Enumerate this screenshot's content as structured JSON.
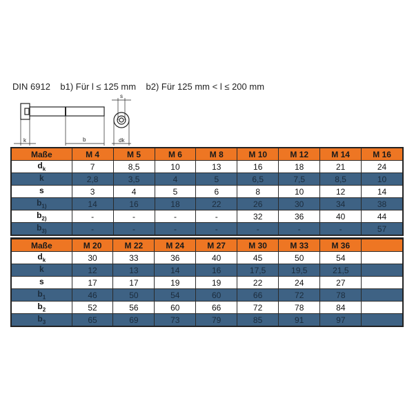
{
  "title": "DIN 6912    b1) Für l ≤ 125 mm    b2) Für 125 mm < l ≤ 200 mm",
  "diagram": {
    "k": "k",
    "b": "b",
    "s": "s",
    "dk": "dk"
  },
  "colors": {
    "header": "#ee7623",
    "band": "#3e6284"
  },
  "table1": {
    "headers": [
      "Maße",
      "M 4",
      "M 5",
      "M 6",
      "M 8",
      "M 10",
      "M 12",
      "M 14",
      "M 16"
    ],
    "rows": [
      {
        "label": "d",
        "sub": "k",
        "values": [
          "7",
          "8,5",
          "10",
          "13",
          "16",
          "18",
          "21",
          "24"
        ]
      },
      {
        "label": "k",
        "sub": "",
        "values": [
          "2,8",
          "3,5",
          "4",
          "5",
          "6,5",
          "7,5",
          "8,5",
          "10"
        ]
      },
      {
        "label": "s",
        "sub": "",
        "values": [
          "3",
          "4",
          "5",
          "6",
          "8",
          "10",
          "12",
          "14"
        ]
      },
      {
        "label": "b",
        "sub": "1)",
        "values": [
          "14",
          "16",
          "18",
          "22",
          "26",
          "30",
          "34",
          "38"
        ]
      },
      {
        "label": "b",
        "sub": "2)",
        "values": [
          "-",
          "-",
          "-",
          "-",
          "32",
          "36",
          "40",
          "44"
        ]
      },
      {
        "label": "b",
        "sub": "3)",
        "values": [
          "-",
          "-",
          "-",
          "-",
          "-",
          "-",
          "-",
          "57"
        ]
      }
    ]
  },
  "table2": {
    "headers": [
      "Maße",
      "M 20",
      "M 22",
      "M 24",
      "M 27",
      "M 30",
      "M 33",
      "M 36",
      ""
    ],
    "rows": [
      {
        "label": "d",
        "sub": "k",
        "values": [
          "30",
          "33",
          "36",
          "40",
          "45",
          "50",
          "54",
          ""
        ]
      },
      {
        "label": "k",
        "sub": "",
        "values": [
          "12",
          "13",
          "14",
          "16",
          "17,5",
          "19,5",
          "21,5",
          ""
        ]
      },
      {
        "label": "s",
        "sub": "",
        "values": [
          "17",
          "17",
          "19",
          "19",
          "22",
          "24",
          "27",
          ""
        ]
      },
      {
        "label": "b",
        "sub": "1",
        "values": [
          "46",
          "50",
          "54",
          "60",
          "66",
          "72",
          "78",
          ""
        ]
      },
      {
        "label": "b",
        "sub": "2",
        "values": [
          "52",
          "56",
          "60",
          "66",
          "72",
          "78",
          "84",
          ""
        ]
      },
      {
        "label": "b",
        "sub": "3",
        "values": [
          "65",
          "69",
          "73",
          "79",
          "85",
          "91",
          "97",
          ""
        ]
      }
    ]
  }
}
